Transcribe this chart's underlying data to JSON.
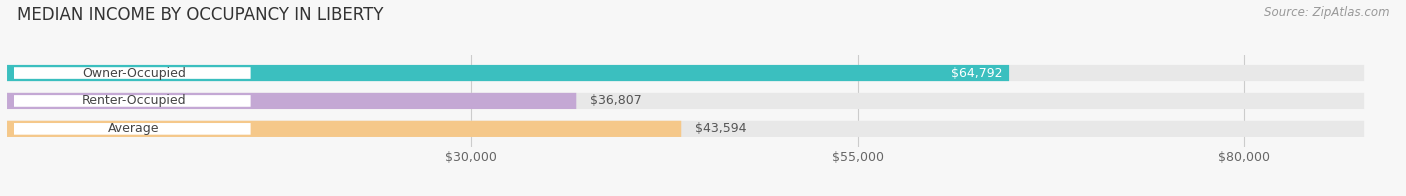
{
  "title": "MEDIAN INCOME BY OCCUPANCY IN LIBERTY",
  "source": "Source: ZipAtlas.com",
  "categories": [
    "Owner-Occupied",
    "Renter-Occupied",
    "Average"
  ],
  "values": [
    64792,
    36807,
    43594
  ],
  "bar_colors": [
    "#3BBFBF",
    "#C4A8D4",
    "#F5C88A"
  ],
  "bar_bg_color": "#E8E8E8",
  "value_labels": [
    "$64,792",
    "$36,807",
    "$43,594"
  ],
  "value_inside": [
    true,
    false,
    false
  ],
  "value_inside_color": "#FFFFFF",
  "value_outside_color": "#555555",
  "xlim": [
    0,
    90000
  ],
  "xticks": [
    30000,
    55000,
    80000
  ],
  "xtick_labels": [
    "$30,000",
    "$55,000",
    "$80,000"
  ],
  "title_fontsize": 12,
  "label_fontsize": 9,
  "value_fontsize": 9,
  "source_fontsize": 8.5,
  "bar_height": 0.58,
  "figsize": [
    14.06,
    1.96
  ],
  "dpi": 100,
  "bg_color": "#F7F7F7",
  "text_color": "#333333",
  "pill_bg_color": "#FFFFFF",
  "pill_alpha": 0.85,
  "grid_color": "#CCCCCC",
  "category_label_color": "#444444"
}
